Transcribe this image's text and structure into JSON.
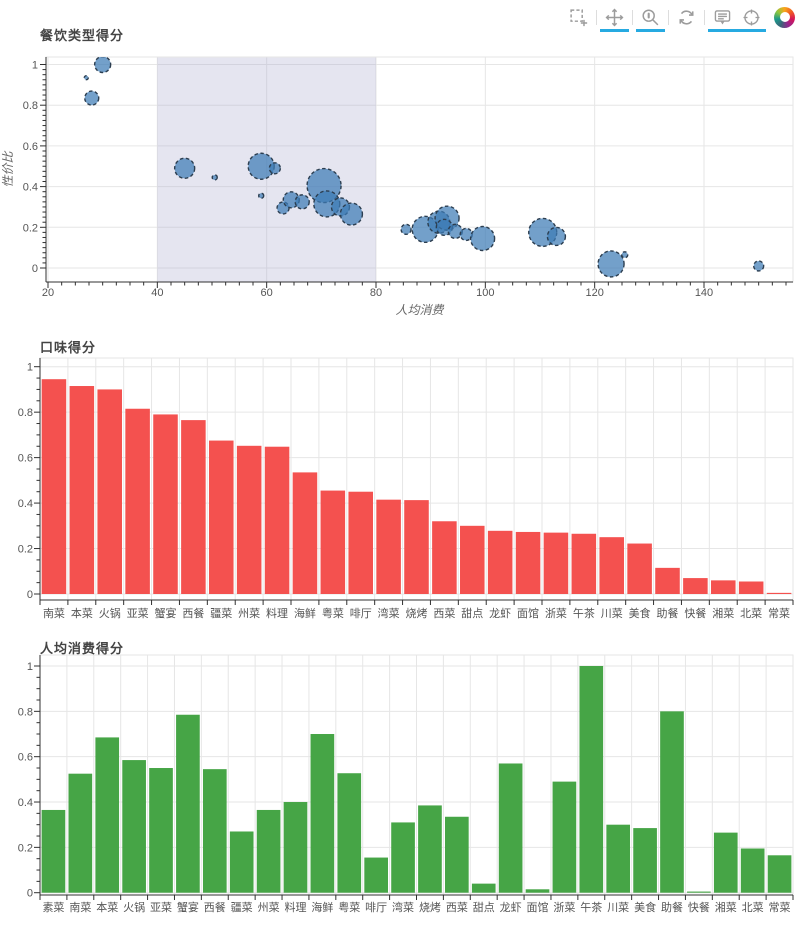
{
  "toolbar": {
    "accent_color": "#26aae1",
    "tools": [
      {
        "name": "box-select",
        "active": false
      },
      {
        "name": "pan",
        "active": true
      },
      {
        "name": "wheel-zoom",
        "active": true
      },
      {
        "name": "reset",
        "active": false
      },
      {
        "name": "hover",
        "active": true
      },
      {
        "name": "crosshair",
        "active": true
      }
    ]
  },
  "chart_data": [
    {
      "type": "scatter",
      "title": "餐饮类型得分",
      "xlabel": "人均消费",
      "ylabel": "性价比",
      "x_ticks": [
        20,
        40,
        60,
        80,
        100,
        120,
        140
      ],
      "y_ticks": [
        0,
        0.2,
        0.4,
        0.6,
        0.8,
        1
      ],
      "xlim": [
        19.6,
        156.6
      ],
      "ylim": [
        -0.069,
        1.037
      ],
      "grid": true,
      "selection_band": {
        "x0": 40,
        "x1": 80,
        "color": "rgba(170,170,205,0.30)"
      },
      "point_fill": "#3d7cb5",
      "point_fill_opacity": 0.72,
      "point_stroke": "#2c3e50",
      "points": [
        {
          "x": 27,
          "y": 0.935,
          "r": 2
        },
        {
          "x": 30,
          "y": 1.0,
          "r": 8
        },
        {
          "x": 28,
          "y": 0.835,
          "r": 7
        },
        {
          "x": 45,
          "y": 0.49,
          "r": 10
        },
        {
          "x": 50.5,
          "y": 0.445,
          "r": 2.5
        },
        {
          "x": 59,
          "y": 0.5,
          "r": 13
        },
        {
          "x": 61.5,
          "y": 0.49,
          "r": 5.5
        },
        {
          "x": 59,
          "y": 0.355,
          "r": 2.5
        },
        {
          "x": 63,
          "y": 0.295,
          "r": 6
        },
        {
          "x": 64.5,
          "y": 0.335,
          "r": 8
        },
        {
          "x": 66.5,
          "y": 0.325,
          "r": 7
        },
        {
          "x": 70.5,
          "y": 0.405,
          "r": 17
        },
        {
          "x": 71,
          "y": 0.315,
          "r": 13
        },
        {
          "x": 73.5,
          "y": 0.3,
          "r": 9
        },
        {
          "x": 75.5,
          "y": 0.265,
          "r": 11
        },
        {
          "x": 85.5,
          "y": 0.19,
          "r": 5
        },
        {
          "x": 89,
          "y": 0.19,
          "r": 13
        },
        {
          "x": 91.5,
          "y": 0.225,
          "r": 11
        },
        {
          "x": 93,
          "y": 0.245,
          "r": 12
        },
        {
          "x": 92.5,
          "y": 0.2,
          "r": 8
        },
        {
          "x": 94.5,
          "y": 0.18,
          "r": 7
        },
        {
          "x": 96.5,
          "y": 0.165,
          "r": 6
        },
        {
          "x": 99.5,
          "y": 0.145,
          "r": 12
        },
        {
          "x": 110.5,
          "y": 0.175,
          "r": 14
        },
        {
          "x": 113,
          "y": 0.155,
          "r": 9
        },
        {
          "x": 123,
          "y": 0.02,
          "r": 13
        },
        {
          "x": 125.5,
          "y": 0.065,
          "r": 3
        },
        {
          "x": 150,
          "y": 0.01,
          "r": 5
        }
      ]
    },
    {
      "type": "bar",
      "title": "口味得分",
      "bar_color": "#f4514f",
      "y_ticks": [
        0,
        0.2,
        0.4,
        0.6,
        0.8,
        1
      ],
      "ylim": [
        -0.026,
        1.038
      ],
      "grid": true,
      "categories": [
        "南菜",
        "本菜",
        "火锅",
        "亚菜",
        "蟹宴",
        "西餐",
        "疆菜",
        "州菜",
        "料理",
        "海鲜",
        "粤菜",
        "啡厅",
        "湾菜",
        "烧烤",
        "西菜",
        "甜点",
        "龙虾",
        "面馆",
        "浙菜",
        "午茶",
        "川菜",
        "美食",
        "助餐",
        "快餐",
        "湘菜",
        "北菜",
        "常菜"
      ],
      "values": [
        0.945,
        0.915,
        0.9,
        0.815,
        0.79,
        0.765,
        0.675,
        0.652,
        0.648,
        0.535,
        0.455,
        0.45,
        0.415,
        0.413,
        0.32,
        0.3,
        0.278,
        0.273,
        0.27,
        0.265,
        0.25,
        0.222,
        0.115,
        0.07,
        0.06,
        0.055,
        0.005
      ]
    },
    {
      "type": "bar",
      "title": "人均消费得分",
      "bar_color": "#46a546",
      "y_ticks": [
        0,
        0.2,
        0.4,
        0.6,
        0.8,
        1
      ],
      "ylim": [
        -0.026,
        1.038
      ],
      "grid": true,
      "categories": [
        "素菜",
        "南菜",
        "本菜",
        "火锅",
        "亚菜",
        "蟹宴",
        "西餐",
        "疆菜",
        "州菜",
        "料理",
        "海鲜",
        "粤菜",
        "啡厅",
        "湾菜",
        "烧烤",
        "西菜",
        "甜点",
        "龙虾",
        "面馆",
        "浙菜",
        "午茶",
        "川菜",
        "美食",
        "助餐",
        "快餐",
        "湘菜",
        "北菜",
        "常菜"
      ],
      "values": [
        0.365,
        0.525,
        0.685,
        0.585,
        0.55,
        0.785,
        0.545,
        0.27,
        0.365,
        0.4,
        0.7,
        0.527,
        0.155,
        0.31,
        0.385,
        0.335,
        0.04,
        0.57,
        0.015,
        0.49,
        1.0,
        0.3,
        0.285,
        0.8,
        0.005,
        0.265,
        0.195,
        0.165
      ]
    }
  ]
}
